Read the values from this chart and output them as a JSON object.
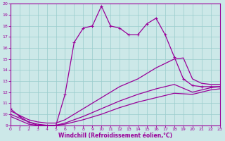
{
  "xlabel": "Windchill (Refroidissement éolien,°C)",
  "bg_color": "#cce8e8",
  "line_color": "#990099",
  "grid_color": "#99cccc",
  "xlim": [
    0,
    23
  ],
  "ylim": [
    9,
    20
  ],
  "xticks": [
    0,
    1,
    2,
    3,
    4,
    5,
    6,
    7,
    8,
    9,
    10,
    11,
    12,
    13,
    14,
    15,
    16,
    17,
    18,
    19,
    20,
    21,
    22,
    23
  ],
  "yticks": [
    9,
    10,
    11,
    12,
    13,
    14,
    15,
    16,
    17,
    18,
    19,
    20
  ],
  "main_x": [
    0,
    1,
    2,
    3,
    4,
    5,
    6,
    7,
    8,
    9,
    10,
    11,
    12,
    13,
    14,
    15,
    16,
    17,
    18,
    19,
    20,
    21,
    22,
    23
  ],
  "main_y": [
    10.5,
    9.8,
    9.3,
    9.0,
    9.0,
    9.0,
    11.8,
    16.5,
    17.8,
    18.0,
    19.8,
    18.0,
    17.8,
    17.2,
    17.2,
    18.2,
    18.7,
    17.2,
    15.2,
    13.2,
    12.6,
    12.5,
    12.5,
    12.5
  ],
  "fan1_x": [
    0,
    2,
    3,
    4,
    5,
    6,
    8,
    10,
    12,
    14,
    16,
    18,
    19,
    20,
    21,
    22,
    23
  ],
  "fan1_y": [
    10.3,
    9.5,
    9.3,
    9.2,
    9.2,
    9.5,
    10.5,
    11.5,
    12.5,
    13.2,
    14.2,
    15.0,
    15.1,
    13.2,
    12.8,
    12.7,
    12.7
  ],
  "fan2_x": [
    0,
    2,
    3,
    4,
    5,
    6,
    8,
    10,
    12,
    14,
    16,
    18,
    20,
    21,
    22,
    23
  ],
  "fan2_y": [
    10.0,
    9.3,
    9.1,
    9.0,
    9.0,
    9.2,
    9.8,
    10.5,
    11.2,
    11.8,
    12.3,
    12.7,
    12.0,
    12.2,
    12.4,
    12.5
  ],
  "fan3_x": [
    0,
    2,
    3,
    4,
    5,
    6,
    8,
    10,
    12,
    14,
    16,
    18,
    20,
    21,
    22,
    23
  ],
  "fan3_y": [
    9.8,
    9.1,
    9.0,
    9.0,
    9.0,
    9.1,
    9.5,
    10.0,
    10.6,
    11.1,
    11.5,
    11.9,
    11.8,
    12.0,
    12.2,
    12.3
  ]
}
